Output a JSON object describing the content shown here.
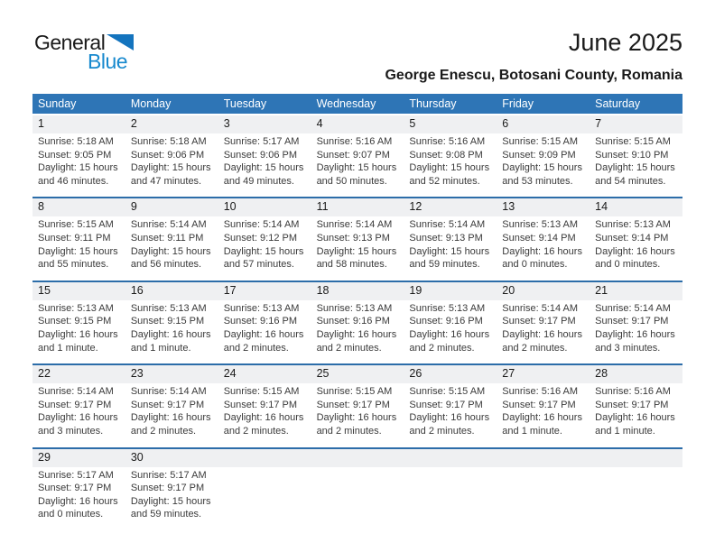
{
  "logo": {
    "line1": "General",
    "line2": "Blue"
  },
  "title": "June 2025",
  "subtitle": "George Enescu, Botosani County, Romania",
  "weekday_headers": [
    "Sunday",
    "Monday",
    "Tuesday",
    "Wednesday",
    "Thursday",
    "Friday",
    "Saturday"
  ],
  "colors": {
    "header_bg": "#2E75B6",
    "week_separator": "#2C6DA9",
    "day_band_bg": "#EFF0F2",
    "logo_blue": "#1789CE",
    "detail_text": "#3a3a3a"
  },
  "weeks": [
    [
      {
        "day": "1",
        "lines": [
          "Sunrise: 5:18 AM",
          "Sunset: 9:05 PM",
          "Daylight: 15 hours",
          "and 46 minutes."
        ]
      },
      {
        "day": "2",
        "lines": [
          "Sunrise: 5:18 AM",
          "Sunset: 9:06 PM",
          "Daylight: 15 hours",
          "and 47 minutes."
        ]
      },
      {
        "day": "3",
        "lines": [
          "Sunrise: 5:17 AM",
          "Sunset: 9:06 PM",
          "Daylight: 15 hours",
          "and 49 minutes."
        ]
      },
      {
        "day": "4",
        "lines": [
          "Sunrise: 5:16 AM",
          "Sunset: 9:07 PM",
          "Daylight: 15 hours",
          "and 50 minutes."
        ]
      },
      {
        "day": "5",
        "lines": [
          "Sunrise: 5:16 AM",
          "Sunset: 9:08 PM",
          "Daylight: 15 hours",
          "and 52 minutes."
        ]
      },
      {
        "day": "6",
        "lines": [
          "Sunrise: 5:15 AM",
          "Sunset: 9:09 PM",
          "Daylight: 15 hours",
          "and 53 minutes."
        ]
      },
      {
        "day": "7",
        "lines": [
          "Sunrise: 5:15 AM",
          "Sunset: 9:10 PM",
          "Daylight: 15 hours",
          "and 54 minutes."
        ]
      }
    ],
    [
      {
        "day": "8",
        "lines": [
          "Sunrise: 5:15 AM",
          "Sunset: 9:11 PM",
          "Daylight: 15 hours",
          "and 55 minutes."
        ]
      },
      {
        "day": "9",
        "lines": [
          "Sunrise: 5:14 AM",
          "Sunset: 9:11 PM",
          "Daylight: 15 hours",
          "and 56 minutes."
        ]
      },
      {
        "day": "10",
        "lines": [
          "Sunrise: 5:14 AM",
          "Sunset: 9:12 PM",
          "Daylight: 15 hours",
          "and 57 minutes."
        ]
      },
      {
        "day": "11",
        "lines": [
          "Sunrise: 5:14 AM",
          "Sunset: 9:13 PM",
          "Daylight: 15 hours",
          "and 58 minutes."
        ]
      },
      {
        "day": "12",
        "lines": [
          "Sunrise: 5:14 AM",
          "Sunset: 9:13 PM",
          "Daylight: 15 hours",
          "and 59 minutes."
        ]
      },
      {
        "day": "13",
        "lines": [
          "Sunrise: 5:13 AM",
          "Sunset: 9:14 PM",
          "Daylight: 16 hours",
          "and 0 minutes."
        ]
      },
      {
        "day": "14",
        "lines": [
          "Sunrise: 5:13 AM",
          "Sunset: 9:14 PM",
          "Daylight: 16 hours",
          "and 0 minutes."
        ]
      }
    ],
    [
      {
        "day": "15",
        "lines": [
          "Sunrise: 5:13 AM",
          "Sunset: 9:15 PM",
          "Daylight: 16 hours",
          "and 1 minute."
        ]
      },
      {
        "day": "16",
        "lines": [
          "Sunrise: 5:13 AM",
          "Sunset: 9:15 PM",
          "Daylight: 16 hours",
          "and 1 minute."
        ]
      },
      {
        "day": "17",
        "lines": [
          "Sunrise: 5:13 AM",
          "Sunset: 9:16 PM",
          "Daylight: 16 hours",
          "and 2 minutes."
        ]
      },
      {
        "day": "18",
        "lines": [
          "Sunrise: 5:13 AM",
          "Sunset: 9:16 PM",
          "Daylight: 16 hours",
          "and 2 minutes."
        ]
      },
      {
        "day": "19",
        "lines": [
          "Sunrise: 5:13 AM",
          "Sunset: 9:16 PM",
          "Daylight: 16 hours",
          "and 2 minutes."
        ]
      },
      {
        "day": "20",
        "lines": [
          "Sunrise: 5:14 AM",
          "Sunset: 9:17 PM",
          "Daylight: 16 hours",
          "and 2 minutes."
        ]
      },
      {
        "day": "21",
        "lines": [
          "Sunrise: 5:14 AM",
          "Sunset: 9:17 PM",
          "Daylight: 16 hours",
          "and 3 minutes."
        ]
      }
    ],
    [
      {
        "day": "22",
        "lines": [
          "Sunrise: 5:14 AM",
          "Sunset: 9:17 PM",
          "Daylight: 16 hours",
          "and 3 minutes."
        ]
      },
      {
        "day": "23",
        "lines": [
          "Sunrise: 5:14 AM",
          "Sunset: 9:17 PM",
          "Daylight: 16 hours",
          "and 2 minutes."
        ]
      },
      {
        "day": "24",
        "lines": [
          "Sunrise: 5:15 AM",
          "Sunset: 9:17 PM",
          "Daylight: 16 hours",
          "and 2 minutes."
        ]
      },
      {
        "day": "25",
        "lines": [
          "Sunrise: 5:15 AM",
          "Sunset: 9:17 PM",
          "Daylight: 16 hours",
          "and 2 minutes."
        ]
      },
      {
        "day": "26",
        "lines": [
          "Sunrise: 5:15 AM",
          "Sunset: 9:17 PM",
          "Daylight: 16 hours",
          "and 2 minutes."
        ]
      },
      {
        "day": "27",
        "lines": [
          "Sunrise: 5:16 AM",
          "Sunset: 9:17 PM",
          "Daylight: 16 hours",
          "and 1 minute."
        ]
      },
      {
        "day": "28",
        "lines": [
          "Sunrise: 5:16 AM",
          "Sunset: 9:17 PM",
          "Daylight: 16 hours",
          "and 1 minute."
        ]
      }
    ],
    [
      {
        "day": "29",
        "lines": [
          "Sunrise: 5:17 AM",
          "Sunset: 9:17 PM",
          "Daylight: 16 hours",
          "and 0 minutes."
        ]
      },
      {
        "day": "30",
        "lines": [
          "Sunrise: 5:17 AM",
          "Sunset: 9:17 PM",
          "Daylight: 15 hours",
          "and 59 minutes."
        ]
      },
      null,
      null,
      null,
      null,
      null
    ]
  ]
}
